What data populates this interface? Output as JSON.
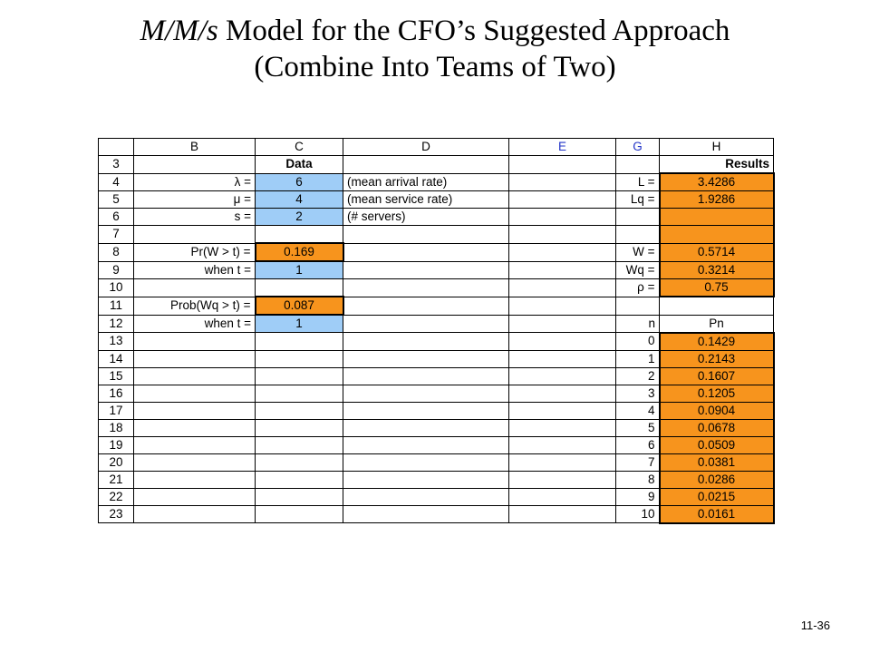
{
  "slide": {
    "title_line1_italic": "M/M/s",
    "title_line1_rest": " Model for the CFO’s Suggested Approach",
    "title_line2": "(Combine Into Teams of Two)",
    "page_number": "11-36"
  },
  "spreadsheet": {
    "columns": [
      "B",
      "C",
      "D",
      "E",
      "G",
      "H"
    ],
    "row_numbers": [
      "3",
      "4",
      "5",
      "6",
      "7",
      "8",
      "9",
      "10",
      "11",
      "12",
      "13",
      "14",
      "15",
      "16",
      "17",
      "18",
      "19",
      "20",
      "21",
      "22",
      "23"
    ],
    "data_header": "Data",
    "results_header": "Results",
    "inputs": {
      "lambda_label": "λ =",
      "lambda_value": "6",
      "lambda_desc": "(mean arrival rate)",
      "mu_label": "μ =",
      "mu_value": "4",
      "mu_desc": "(mean service rate)",
      "s_label": "s =",
      "s_value": "2",
      "s_desc": "(# servers)",
      "pr_w_label": "Pr(W > t) =",
      "pr_w_value": "0.169",
      "when_t_label_1": "when t =",
      "when_t_value_1": "1",
      "prob_wq_label": "Prob(Wq > t) =",
      "prob_wq_value": "0.087",
      "when_t_label_2": "when t =",
      "when_t_value_2": "1"
    },
    "results": {
      "L_label": "L =",
      "L_value": "3.4286",
      "Lq_label": "Lq =",
      "Lq_value": "1.9286",
      "W_label": "W =",
      "W_value": "0.5714",
      "Wq_label": "Wq =",
      "Wq_value": "0.3214",
      "rho_label": "ρ =",
      "rho_value": "0.75",
      "n_label": "n",
      "Pn_label": "Pn"
    },
    "pn_table": [
      {
        "n": "0",
        "p": "0.1429"
      },
      {
        "n": "1",
        "p": "0.2143"
      },
      {
        "n": "2",
        "p": "0.1607"
      },
      {
        "n": "3",
        "p": "0.1205"
      },
      {
        "n": "4",
        "p": "0.0904"
      },
      {
        "n": "5",
        "p": "0.0678"
      },
      {
        "n": "6",
        "p": "0.0509"
      },
      {
        "n": "7",
        "p": "0.0381"
      },
      {
        "n": "8",
        "p": "0.0286"
      },
      {
        "n": "9",
        "p": "0.0215"
      },
      {
        "n": "10",
        "p": "0.0161"
      }
    ]
  }
}
